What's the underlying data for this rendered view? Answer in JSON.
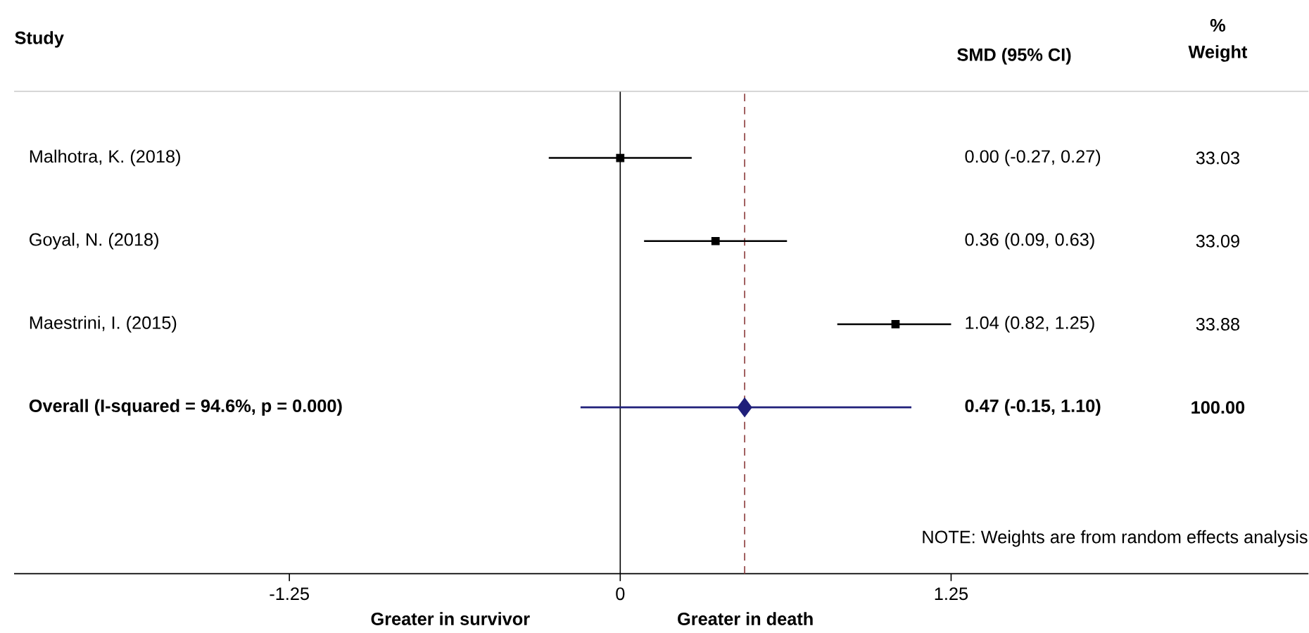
{
  "chart_data": {
    "type": "scatter",
    "orientation": "horizontal",
    "marker": "square",
    "categories": [
      "Malhotra, K. (2018)",
      "Goyal, N. (2018)",
      "Maestrini, I. (2015)",
      "Overall  (I-squared = 94.6%, p = 0.000)"
    ],
    "series": [
      {
        "color": "#000000",
        "values": [
          0.0,
          0.36,
          1.04,
          null
        ],
        "errors": [
          [
            -0.27,
            0.27
          ],
          [
            0.09,
            0.63
          ],
          [
            0.82,
            1.25
          ],
          null
        ]
      },
      {
        "marker": "diamond",
        "color": "#1f1f7a",
        "values": [
          null,
          null,
          null,
          0.47
        ],
        "errors": [
          null,
          null,
          null,
          [
            -0.15,
            1.1
          ]
        ]
      }
    ],
    "xlim": [
      -2.29,
      2.6
    ],
    "xticks": [
      -1.25,
      0,
      1.25
    ],
    "ref_lines": [
      {
        "axis": "x",
        "value": 0,
        "color": "#000000",
        "line_style": "solid"
      },
      {
        "axis": "x",
        "value": 0.47,
        "color": "#8b3a3a",
        "line_style": "dashed"
      }
    ],
    "annotations": [
      "Study",
      "SMD (95% CI)",
      "%",
      "Weight",
      "0.00 (-0.27, 0.27)",
      "0.36 (0.09, 0.63)",
      "1.04 (0.82, 1.25)",
      "0.47 (-0.15, 1.10)",
      "33.03",
      "33.09",
      "33.88",
      "100.00",
      "NOTE: Weights are from random effects analysis",
      "Greater in survivor",
      "Greater in death"
    ]
  }
}
